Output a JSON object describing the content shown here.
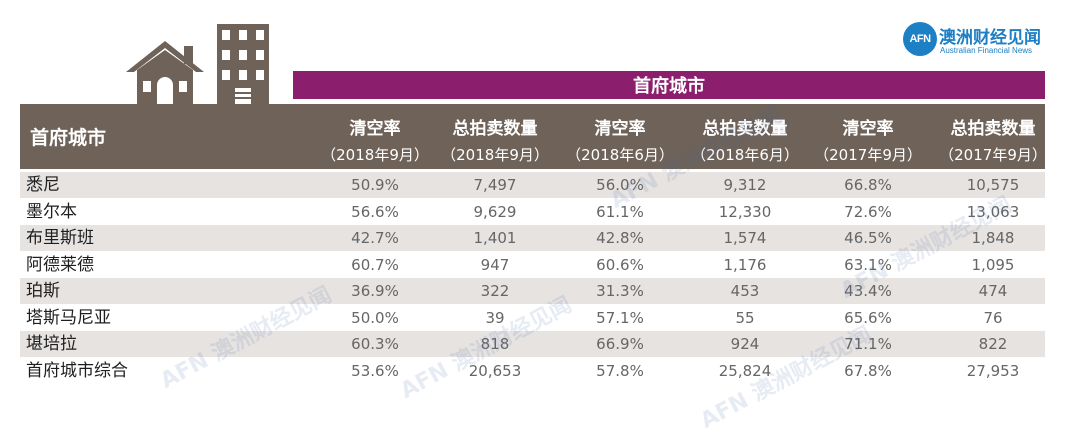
{
  "logo": {
    "mark": "AFN",
    "name_cn": "澳洲财经见闻",
    "name_en": "Australian Financial News"
  },
  "icons": {
    "house": "house-icon",
    "building": "building-icon"
  },
  "colors": {
    "super_header_bg": "#8b1f6e",
    "header_bg": "#6e6259",
    "row_shade": "#e6e3e1",
    "brand": "#1d7fc4"
  },
  "table": {
    "super_header": "首府城市",
    "city_header": "首府城市",
    "columns": [
      {
        "metric": "清空率",
        "period": "（2018年9月）"
      },
      {
        "metric": "总拍卖数量",
        "period": "（2018年9月）"
      },
      {
        "metric": "清空率",
        "period": "（2018年6月）"
      },
      {
        "metric": "总拍卖数量",
        "period": "（2018年6月）"
      },
      {
        "metric": "清空率",
        "period": "（2017年9月）"
      },
      {
        "metric": "总拍卖数量",
        "period": "（2017年9月）"
      }
    ],
    "rows": [
      {
        "city": "悉尼",
        "values": [
          "50.9%",
          "7,497",
          "56.0%",
          "9,312",
          "66.8%",
          "10,575"
        ]
      },
      {
        "city": "墨尔本",
        "values": [
          "56.6%",
          "9,629",
          "61.1%",
          "12,330",
          "72.6%",
          "13,063"
        ]
      },
      {
        "city": "布里斯班",
        "values": [
          "42.7%",
          "1,401",
          "42.8%",
          "1,574",
          "46.5%",
          "1,848"
        ]
      },
      {
        "city": "阿德莱德",
        "values": [
          "60.7%",
          "947",
          "60.6%",
          "1,176",
          "63.1%",
          "1,095"
        ]
      },
      {
        "city": "珀斯",
        "values": [
          "36.9%",
          "322",
          "31.3%",
          "453",
          "43.4%",
          "474"
        ]
      },
      {
        "city": "塔斯马尼亚",
        "values": [
          "50.0%",
          "39",
          "57.1%",
          "55",
          "65.6%",
          "76"
        ]
      },
      {
        "city": "堪培拉",
        "values": [
          "60.3%",
          "818",
          "66.9%",
          "924",
          "71.1%",
          "822"
        ]
      },
      {
        "city": "首府城市综合",
        "values": [
          "53.6%",
          "20,653",
          "57.8%",
          "25,824",
          "67.8%",
          "27,953"
        ]
      }
    ]
  }
}
